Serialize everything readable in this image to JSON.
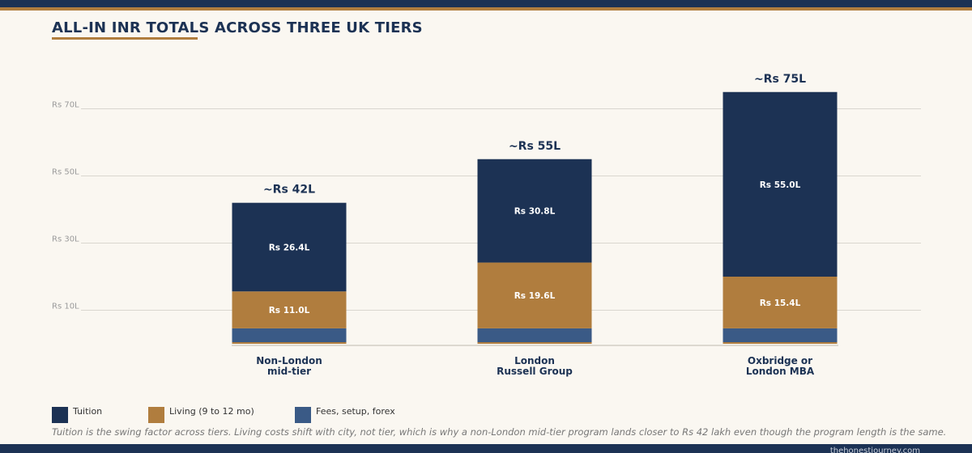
{
  "header": {
    "title": "ALL-IN INR TOTALS ACROSS THREE UK TIERS"
  },
  "colors": {
    "tuition": "#1c3254",
    "living": "#b07d3e",
    "fees": "#3a5a86",
    "accent": "#b07d3e",
    "background": "#faf7f1"
  },
  "chart_data": {
    "type": "bar",
    "stacked": true,
    "title": "ALL-IN INR TOTALS ACROSS THREE UK TIERS",
    "xlabel": "",
    "ylabel": "",
    "ylim": [
      0,
      78
    ],
    "grid": true,
    "legend_position": "bottom-left",
    "y_ticks": [
      {
        "value": 10,
        "label": "Rs 10L"
      },
      {
        "value": 30,
        "label": "Rs 30L"
      },
      {
        "value": 50,
        "label": "Rs 50L"
      },
      {
        "value": 70,
        "label": "Rs 70L"
      }
    ],
    "categories": [
      [
        "Non-London",
        "mid-tier"
      ],
      [
        "London",
        "Russell Group"
      ],
      [
        "Oxbridge or",
        "London MBA"
      ]
    ],
    "series": [
      {
        "name": "Fees, setup, forex",
        "key": "fees",
        "values": [
          4.6,
          4.6,
          4.6
        ],
        "labels": [
          "",
          "",
          ""
        ]
      },
      {
        "name": "Living (9 to 12 mo)",
        "key": "living",
        "values": [
          11.0,
          19.6,
          15.4
        ],
        "labels": [
          "Rs 11.0L",
          "Rs 19.6L",
          "Rs 15.4L"
        ]
      },
      {
        "name": "Tuition",
        "key": "tuition",
        "values": [
          26.4,
          30.8,
          55.0
        ],
        "labels": [
          "Rs 26.4L",
          "Rs 30.8L",
          "Rs 55.0L"
        ]
      }
    ],
    "totals": [
      "~Rs 42L",
      "~Rs 55L",
      "~Rs 75L"
    ],
    "total_values": [
      42,
      55,
      75
    ]
  },
  "legend": [
    {
      "label": "Tuition",
      "key": "tuition"
    },
    {
      "label": "Living (9 to 12 mo)",
      "key": "living"
    },
    {
      "label": "Fees, setup, forex",
      "key": "fees"
    }
  ],
  "footnote": "Tuition is the swing factor across tiers. Living costs shift with city, not tier, which is why a non-London mid-tier program lands closer to Rs 42 lakh even though the program length is the same.",
  "source": "thehonestjourney.com"
}
